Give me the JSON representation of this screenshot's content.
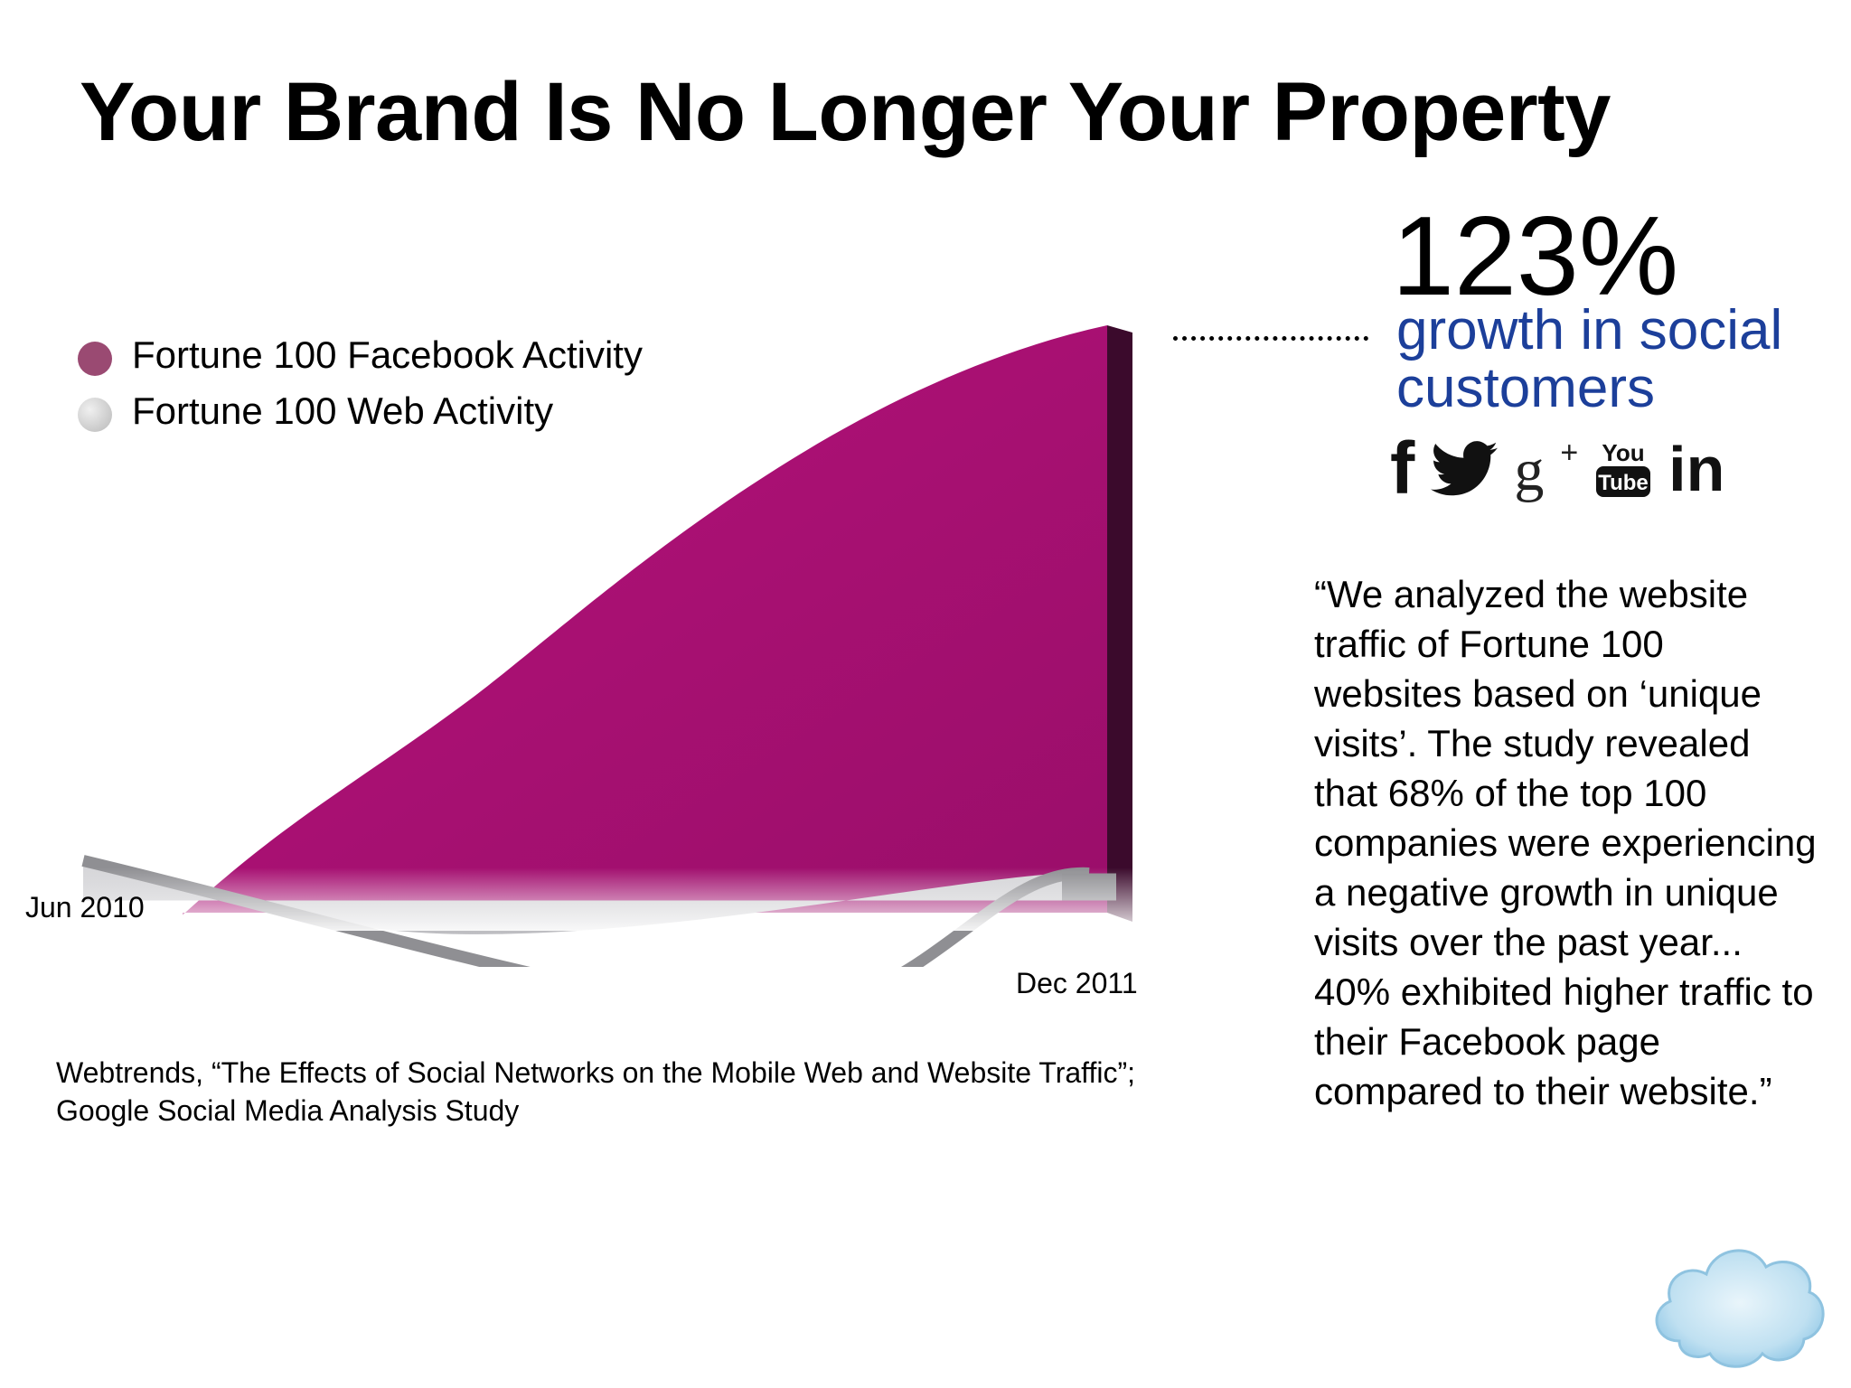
{
  "slide": {
    "title": "Your Brand Is No Longer Your Property"
  },
  "chart_data": {
    "type": "area",
    "x": [
      "Jun 2010",
      "Dec 2011"
    ],
    "series": [
      {
        "name": "Fortune 100 Facebook Activity",
        "start": 0.22,
        "end": 1.0
      },
      {
        "name": "Fortune 100 Web Activity",
        "start": 0.28,
        "end": 0.05
      }
    ],
    "legend_position": "top-left",
    "grid": false,
    "colors": {
      "facebook": "#a3116f",
      "web": "#c9c9cc",
      "legend_facebook": "#9a4a72",
      "legend_web": "#c8c8c8"
    }
  },
  "legend": {
    "facebook_label": "Fortune 100 Facebook  Activity",
    "web_label": "Fortune 100 Web Activity"
  },
  "axis": {
    "start_label": "Jun 2010",
    "end_label": "Dec 2011"
  },
  "source": {
    "line1": "Webtrends, “The Effects of Social Networks on the Mobile Web and Website Traffic”;",
    "line2": "Google Social Media Analysis Study"
  },
  "stat": {
    "value": "123%",
    "caption": "growth in social customers",
    "accent": "#1c3f9a"
  },
  "social_icons": {
    "facebook": "f",
    "twitter": "twitter-bird",
    "gplus": "g",
    "gplus_plus": "+",
    "youtube_top": "You",
    "youtube_bottom": "Tube",
    "linkedin": "in"
  },
  "quote": {
    "text": "“We analyzed the website traffic of Fortune 100 websites based on ‘unique visits’. The study revealed that 68% of the top 100 companies were experiencing a negative growth in unique visits over the past year... 40% exhibited higher traffic to their Facebook page compared to their website.”"
  }
}
